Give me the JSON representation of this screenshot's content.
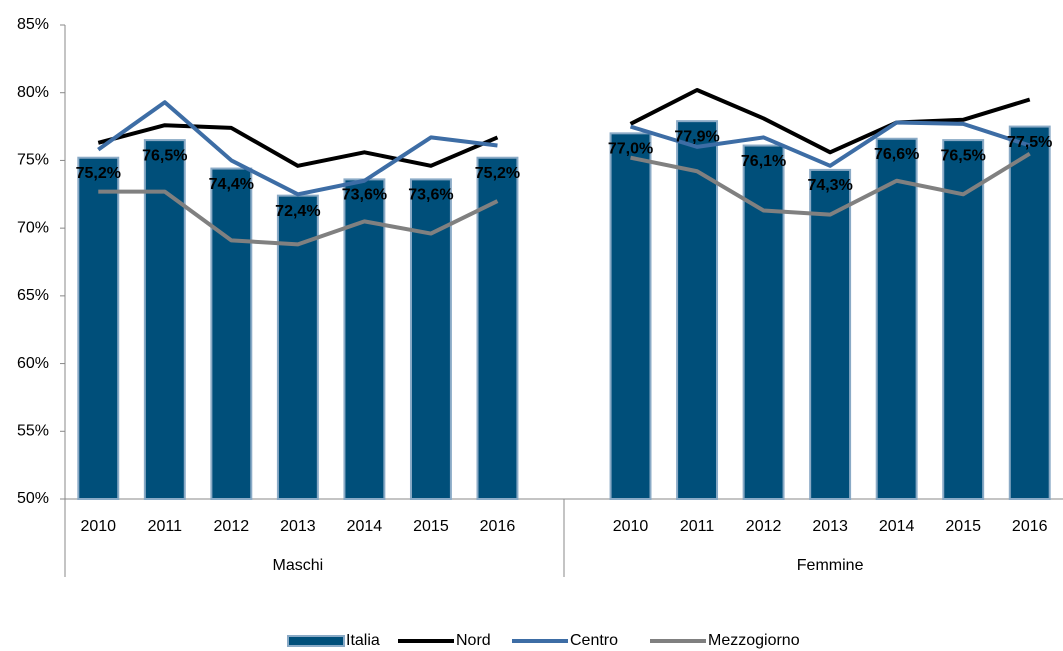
{
  "chart_data": {
    "type": "bar_line",
    "categories": [
      "2010",
      "2011",
      "2012",
      "2013",
      "2014",
      "2015",
      "2016",
      null,
      "2010",
      "2011",
      "2012",
      "2013",
      "2014",
      "2015",
      "2016"
    ],
    "group_labels": [
      "Maschi",
      "Femmine"
    ],
    "ylim": [
      50,
      85
    ],
    "yticks": [
      {
        "value": 50,
        "label": "50%"
      },
      {
        "value": 55,
        "label": "55%"
      },
      {
        "value": 60,
        "label": "60%"
      },
      {
        "value": 65,
        "label": "65%"
      },
      {
        "value": 70,
        "label": "70%"
      },
      {
        "value": 75,
        "label": "75%"
      },
      {
        "value": 80,
        "label": "80%"
      },
      {
        "value": 85,
        "label": "85%"
      }
    ],
    "series": [
      {
        "name": "Italia",
        "kind": "bar",
        "color": "#004f7a",
        "values": [
          75.2,
          76.5,
          74.4,
          72.4,
          73.6,
          73.6,
          75.2,
          null,
          77.0,
          77.9,
          76.1,
          74.3,
          76.6,
          76.5,
          77.5
        ],
        "value_labels": [
          "75,2%",
          "76,5%",
          "74,4%",
          "72,4%",
          "73,6%",
          "73,6%",
          "75,2%",
          null,
          "77,0%",
          "77,9%",
          "76,1%",
          "74,3%",
          "76,6%",
          "76,5%",
          "77,5%"
        ]
      },
      {
        "name": "Nord",
        "kind": "line",
        "color": "#000000",
        "values": [
          76.3,
          77.6,
          77.4,
          74.6,
          75.6,
          74.6,
          76.7,
          null,
          77.7,
          80.2,
          78.1,
          75.6,
          77.8,
          78.0,
          79.5
        ]
      },
      {
        "name": "Centro",
        "kind": "line",
        "color": "#3d6da5",
        "values": [
          75.8,
          79.3,
          75.0,
          72.5,
          73.5,
          76.7,
          76.1,
          null,
          77.5,
          76.0,
          76.7,
          74.6,
          77.8,
          77.7,
          76.1
        ]
      },
      {
        "name": "Mezzogiorno",
        "kind": "line",
        "color": "#808080",
        "values": [
          72.7,
          72.7,
          69.1,
          68.8,
          70.5,
          69.6,
          72.0,
          null,
          75.2,
          74.2,
          71.3,
          71.0,
          73.5,
          72.5,
          75.5
        ]
      }
    ]
  }
}
